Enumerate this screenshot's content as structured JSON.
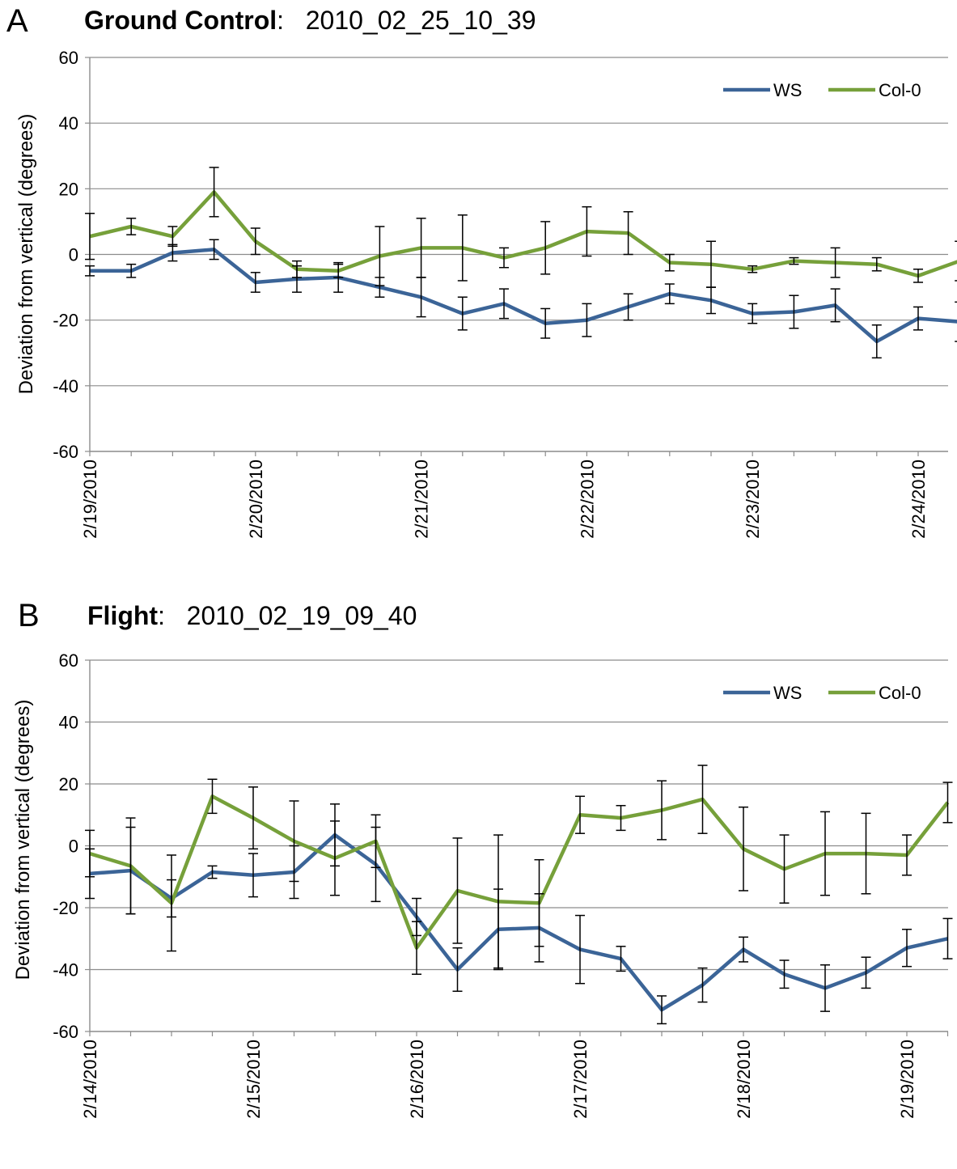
{
  "chart_data": [
    {
      "type": "line",
      "panel_label": "A",
      "title_bold": "Ground Control",
      "title_rest": ":   2010_02_25_10_39",
      "ylabel": "Deviation from vertical (degrees)",
      "xlabel": "",
      "ylim": [
        -60,
        60
      ],
      "yticks": [
        -60,
        -40,
        -20,
        0,
        20,
        40,
        60
      ],
      "x_tick_labels": [
        "2/19/2010",
        "2/20/2010",
        "2/21/2010",
        "2/22/2010",
        "2/23/2010",
        "2/24/2010"
      ],
      "points_per_day": 4,
      "grid": "horizontal",
      "legend_position": "top-right",
      "series": [
        {
          "name": "WS",
          "color": "#3b6497",
          "values": [
            -5,
            -5,
            0.5,
            1.5,
            -8.5,
            -7.5,
            -7,
            -10,
            -13,
            -18,
            -15,
            -21,
            -20,
            -16,
            -12,
            -14,
            -18,
            -17.5,
            -15.5,
            -26.5,
            -19.5,
            -20.5
          ],
          "errors": [
            1.5,
            2,
            2.5,
            3,
            3,
            4,
            4.5,
            3,
            6,
            5,
            4.5,
            4.5,
            5,
            4,
            3,
            4,
            3,
            5,
            5,
            5,
            3.5,
            6
          ]
        },
        {
          "name": "Col-0",
          "color": "#76a03a",
          "values": [
            5.5,
            8.5,
            5.5,
            19,
            4,
            -4.5,
            -5,
            -0.5,
            2,
            2,
            -1,
            2,
            7,
            6.5,
            -2.5,
            -3,
            -4.5,
            -2,
            -2.5,
            -3,
            -6.5,
            -2
          ],
          "errors": [
            7,
            2.5,
            3,
            7.5,
            4,
            2.5,
            2,
            9,
            9,
            10,
            3,
            8,
            7.5,
            6.5,
            2.5,
            7,
            1,
            1,
            4.5,
            2,
            2,
            6
          ]
        }
      ]
    },
    {
      "type": "line",
      "panel_label": "B",
      "title_bold": "Flight",
      "title_rest": ":   2010_02_19_09_40",
      "ylabel": "Deviation from vertical (degrees)",
      "xlabel": "",
      "ylim": [
        -60,
        60
      ],
      "yticks": [
        -60,
        -40,
        -20,
        0,
        20,
        40,
        60
      ],
      "x_tick_labels": [
        "2/14/2010",
        "2/15/2010",
        "2/16/2010",
        "2/17/2010",
        "2/18/2010",
        "2/19/2010"
      ],
      "points_per_day": 4,
      "grid": "horizontal",
      "legend_position": "top-right",
      "series": [
        {
          "name": "WS",
          "color": "#3b6497",
          "values": [
            -9,
            -8,
            -17,
            -8.5,
            -9.5,
            -8.5,
            3.5,
            -6,
            -23,
            -40,
            -27,
            -26.5,
            -33.5,
            -36.5,
            -53,
            -45,
            -33.5,
            -41.5,
            -46,
            -41,
            -33,
            -30
          ],
          "errors": [
            8,
            14,
            6,
            2,
            7,
            8.5,
            10,
            12,
            6,
            7,
            13,
            11,
            11,
            4,
            4.5,
            5.5,
            4,
            4.5,
            7.5,
            5,
            6,
            6.5
          ]
        },
        {
          "name": "Col-0",
          "color": "#76a03a",
          "values": [
            -2.5,
            -6.5,
            -18.5,
            16,
            9,
            1.5,
            -4,
            1.5,
            -33,
            -14.5,
            -18,
            -18.5,
            10,
            9,
            11.5,
            15,
            -1,
            -7.5,
            -2.5,
            -2.5,
            -3,
            14
          ],
          "errors": [
            7.5,
            15.5,
            15.5,
            5.5,
            10,
            13,
            12,
            8.5,
            8.5,
            17,
            21.5,
            14,
            6,
            4,
            9.5,
            11,
            13.5,
            11,
            13.5,
            13,
            6.5,
            6.5
          ]
        }
      ]
    }
  ]
}
